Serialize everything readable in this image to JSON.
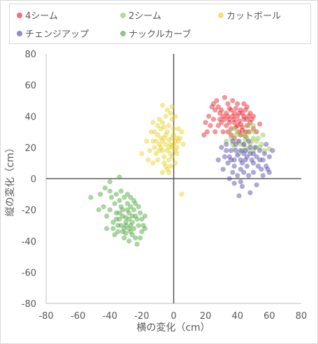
{
  "chart_data": {
    "type": "scatter",
    "xlabel": "横の変化（cm）",
    "ylabel": "縦の変化（cm）",
    "xlim": [
      -80,
      80
    ],
    "ylim": [
      -80,
      80
    ],
    "xticks": [
      "-80",
      "-60",
      "-40",
      "-20",
      "0",
      "20",
      "40",
      "60",
      "80"
    ],
    "yticks": [
      "80",
      "60",
      "40",
      "20",
      "0",
      "-20",
      "-40",
      "-60",
      "-80"
    ],
    "grid": false,
    "legend_position": "top",
    "series": [
      {
        "name": "4シーム",
        "color": "#e8121c",
        "points": [
          [
            35,
            38
          ],
          [
            38,
            36
          ],
          [
            40,
            40
          ],
          [
            42,
            35
          ],
          [
            33,
            42
          ],
          [
            30,
            44
          ],
          [
            36,
            32
          ],
          [
            44,
            38
          ],
          [
            46,
            34
          ],
          [
            39,
            45
          ],
          [
            34,
            30
          ],
          [
            28,
            46
          ],
          [
            32,
            52
          ],
          [
            27,
            50
          ],
          [
            25,
            48
          ],
          [
            24,
            46
          ],
          [
            22,
            40
          ],
          [
            20,
            36
          ],
          [
            26,
            30
          ],
          [
            30,
            36
          ],
          [
            35,
            45
          ],
          [
            38,
            42
          ],
          [
            41,
            37
          ],
          [
            43,
            42
          ],
          [
            45,
            44
          ],
          [
            47,
            40
          ],
          [
            48,
            36
          ],
          [
            50,
            32
          ],
          [
            52,
            30
          ],
          [
            54,
            35
          ],
          [
            49,
            38
          ],
          [
            46,
            46
          ],
          [
            44,
            48
          ],
          [
            40,
            48
          ],
          [
            37,
            50
          ],
          [
            34,
            48
          ],
          [
            31,
            40
          ],
          [
            29,
            38
          ],
          [
            28,
            34
          ],
          [
            36,
            28
          ],
          [
            38,
            26
          ],
          [
            41,
            30
          ],
          [
            43,
            33
          ],
          [
            45,
            30
          ],
          [
            42,
            28
          ],
          [
            39,
            33
          ],
          [
            33,
            34
          ],
          [
            31,
            30
          ],
          [
            37,
            40
          ],
          [
            40,
            34
          ],
          [
            35,
            36
          ],
          [
            32,
            38
          ],
          [
            29,
            42
          ],
          [
            26,
            44
          ],
          [
            25,
            38
          ],
          [
            23,
            34
          ],
          [
            21,
            30
          ],
          [
            19,
            28
          ],
          [
            42,
            44
          ],
          [
            44,
            40
          ],
          [
            46,
            38
          ],
          [
            48,
            42
          ],
          [
            50,
            40
          ],
          [
            47,
            30
          ],
          [
            45,
            27
          ],
          [
            43,
            31
          ],
          [
            41,
            42
          ],
          [
            38,
            38
          ],
          [
            36,
            44
          ],
          [
            34,
            40
          ]
        ]
      },
      {
        "name": "2シーム",
        "color": "#8fc04a",
        "points": [
          [
            42,
            28
          ],
          [
            45,
            25
          ],
          [
            48,
            22
          ],
          [
            50,
            26
          ],
          [
            46,
            30
          ],
          [
            44,
            22
          ],
          [
            40,
            24
          ],
          [
            38,
            20
          ],
          [
            36,
            26
          ],
          [
            52,
            24
          ],
          [
            54,
            20
          ],
          [
            56,
            28
          ],
          [
            50,
            18
          ],
          [
            47,
            18
          ],
          [
            43,
            18
          ],
          [
            41,
            16
          ],
          [
            39,
            28
          ],
          [
            35,
            30
          ],
          [
            33,
            24
          ],
          [
            48,
            30
          ],
          [
            51,
            30
          ],
          [
            53,
            26
          ],
          [
            55,
            22
          ],
          [
            57,
            18
          ],
          [
            45,
            20
          ],
          [
            42,
            22
          ],
          [
            40,
            30
          ],
          [
            37,
            22
          ],
          [
            49,
            24
          ],
          [
            46,
            26
          ],
          [
            44,
            28
          ],
          [
            47,
            34
          ],
          [
            50,
            34
          ],
          [
            52,
            20
          ],
          [
            38,
            32
          ],
          [
            60,
            19
          ]
        ]
      },
      {
        "name": "カットボール",
        "color": "#e6cf1a",
        "points": [
          [
            -5,
            22
          ],
          [
            -3,
            25
          ],
          [
            -1,
            20
          ],
          [
            1,
            24
          ],
          [
            -7,
            18
          ],
          [
            -8,
            26
          ],
          [
            -4,
            30
          ],
          [
            -2,
            16
          ],
          [
            0,
            28
          ],
          [
            2,
            20
          ],
          [
            -6,
            14
          ],
          [
            -9,
            22
          ],
          [
            -10,
            28
          ],
          [
            -12,
            20
          ],
          [
            -11,
            16
          ],
          [
            -13,
            24
          ],
          [
            -14,
            30
          ],
          [
            -3,
            34
          ],
          [
            -1,
            38
          ],
          [
            1,
            40
          ],
          [
            3,
            32
          ],
          [
            -5,
            40
          ],
          [
            -7,
            36
          ],
          [
            -15,
            18
          ],
          [
            -6,
            10
          ],
          [
            -3,
            12
          ],
          [
            -1,
            14
          ],
          [
            2,
            16
          ],
          [
            4,
            26
          ],
          [
            5,
            30
          ],
          [
            6,
            22
          ],
          [
            -2,
            8
          ],
          [
            -4,
            6
          ],
          [
            -8,
            32
          ],
          [
            -10,
            12
          ],
          [
            -12,
            30
          ],
          [
            0,
            32
          ],
          [
            -6,
            26
          ],
          [
            -4,
            18
          ],
          [
            -2,
            22
          ],
          [
            -1,
            26
          ],
          [
            1,
            18
          ],
          [
            3,
            24
          ],
          [
            -8,
            20
          ],
          [
            -5,
            28
          ],
          [
            -3,
            20
          ],
          [
            0,
            22
          ],
          [
            2,
            26
          ],
          [
            -7,
            24
          ],
          [
            -9,
            18
          ],
          [
            -11,
            24
          ],
          [
            -20,
            16
          ],
          [
            -17,
            24
          ],
          [
            -16,
            12
          ],
          [
            -7,
            47
          ],
          [
            -1,
            46
          ],
          [
            -2,
            42
          ],
          [
            -9,
            38
          ],
          [
            -4,
            44
          ],
          [
            -6,
            33
          ],
          [
            -10,
            34
          ],
          [
            -13,
            36
          ],
          [
            -5,
            8
          ],
          [
            1,
            10
          ],
          [
            -3,
            4
          ],
          [
            5,
            -10
          ],
          [
            -13,
            10
          ],
          [
            -7,
            4
          ]
        ]
      },
      {
        "name": "チェンジアップ",
        "color": "#4b3fa6",
        "points": [
          [
            40,
            15
          ],
          [
            42,
            18
          ],
          [
            45,
            12
          ],
          [
            38,
            12
          ],
          [
            36,
            18
          ],
          [
            44,
            22
          ],
          [
            48,
            16
          ],
          [
            50,
            10
          ],
          [
            46,
            8
          ],
          [
            42,
            6
          ],
          [
            38,
            8
          ],
          [
            35,
            14
          ],
          [
            52,
            14
          ],
          [
            54,
            18
          ],
          [
            56,
            12
          ],
          [
            58,
            8
          ],
          [
            55,
            6
          ],
          [
            50,
            4
          ],
          [
            47,
            2
          ],
          [
            44,
            4
          ],
          [
            40,
            2
          ],
          [
            37,
            4
          ],
          [
            34,
            10
          ],
          [
            32,
            14
          ],
          [
            30,
            20
          ],
          [
            33,
            22
          ],
          [
            41,
            24
          ],
          [
            47,
            24
          ],
          [
            51,
            20
          ],
          [
            53,
            8
          ],
          [
            57,
            16
          ],
          [
            60,
            14
          ],
          [
            62,
            18
          ],
          [
            46,
            14
          ],
          [
            43,
            10
          ],
          [
            39,
            18
          ],
          [
            36,
            12
          ],
          [
            48,
            20
          ],
          [
            45,
            18
          ],
          [
            42,
            12
          ],
          [
            41,
            -11
          ],
          [
            48,
            -9
          ],
          [
            43,
            -5
          ],
          [
            52,
            -4
          ],
          [
            38,
            -3
          ],
          [
            35,
            0
          ],
          [
            56,
            2
          ],
          [
            59,
            6
          ],
          [
            28,
            12
          ],
          [
            31,
            6
          ],
          [
            39,
            22
          ],
          [
            49,
            12
          ],
          [
            44,
            16
          ],
          [
            37,
            24
          ],
          [
            33,
            18
          ],
          [
            60,
            4
          ],
          [
            54,
            12
          ],
          [
            50,
            16
          ],
          [
            42,
            -2
          ],
          [
            58,
            22
          ]
        ]
      },
      {
        "name": "ナックルカーブ",
        "color": "#43a030",
        "points": [
          [
            -30,
            -25
          ],
          [
            -28,
            -22
          ],
          [
            -32,
            -20
          ],
          [
            -26,
            -28
          ],
          [
            -34,
            -26
          ],
          [
            -30,
            -30
          ],
          [
            -28,
            -32
          ],
          [
            -25,
            -20
          ],
          [
            -33,
            -18
          ],
          [
            -36,
            -22
          ],
          [
            -38,
            -28
          ],
          [
            -27,
            -18
          ],
          [
            -24,
            -24
          ],
          [
            -22,
            -30
          ],
          [
            -30,
            -35
          ],
          [
            -26,
            -36
          ],
          [
            -32,
            -34
          ],
          [
            -35,
            -30
          ],
          [
            -29,
            -16
          ],
          [
            -31,
            -12
          ],
          [
            -27,
            -12
          ],
          [
            -34,
            -14
          ],
          [
            -37,
            -16
          ],
          [
            -40,
            -20
          ],
          [
            -42,
            -24
          ],
          [
            -38,
            -32
          ],
          [
            -23,
            -26
          ],
          [
            -21,
            -22
          ],
          [
            -20,
            -34
          ],
          [
            -24,
            -38
          ],
          [
            -28,
            -40
          ],
          [
            -31,
            -38
          ],
          [
            -44,
            -18
          ],
          [
            -46,
            -10
          ],
          [
            -40,
            -8
          ],
          [
            -36,
            -10
          ],
          [
            -33,
            -8
          ],
          [
            -29,
            -10
          ],
          [
            -25,
            -14
          ],
          [
            -22,
            -18
          ],
          [
            -18,
            -24
          ],
          [
            -19,
            -30
          ],
          [
            -21,
            -38
          ],
          [
            -23,
            -42
          ],
          [
            -30,
            -28
          ],
          [
            -28,
            -26
          ],
          [
            -26,
            -24
          ],
          [
            -32,
            -24
          ],
          [
            -34,
            -22
          ],
          [
            -36,
            -26
          ],
          [
            -29,
            -20
          ],
          [
            -27,
            -30
          ],
          [
            -33,
            -30
          ],
          [
            -25,
            -32
          ],
          [
            -52,
            -12
          ],
          [
            -40,
            -2
          ],
          [
            -34,
            1
          ],
          [
            -42,
            -32
          ],
          [
            -37,
            -36
          ],
          [
            -47,
            -20
          ],
          [
            -39,
            -12
          ],
          [
            -43,
            -6
          ],
          [
            -31,
            -32
          ],
          [
            -35,
            -34
          ],
          [
            -24,
            -16
          ],
          [
            -20,
            -26
          ],
          [
            -18,
            -32
          ],
          [
            -27,
            -34
          ]
        ]
      }
    ]
  }
}
